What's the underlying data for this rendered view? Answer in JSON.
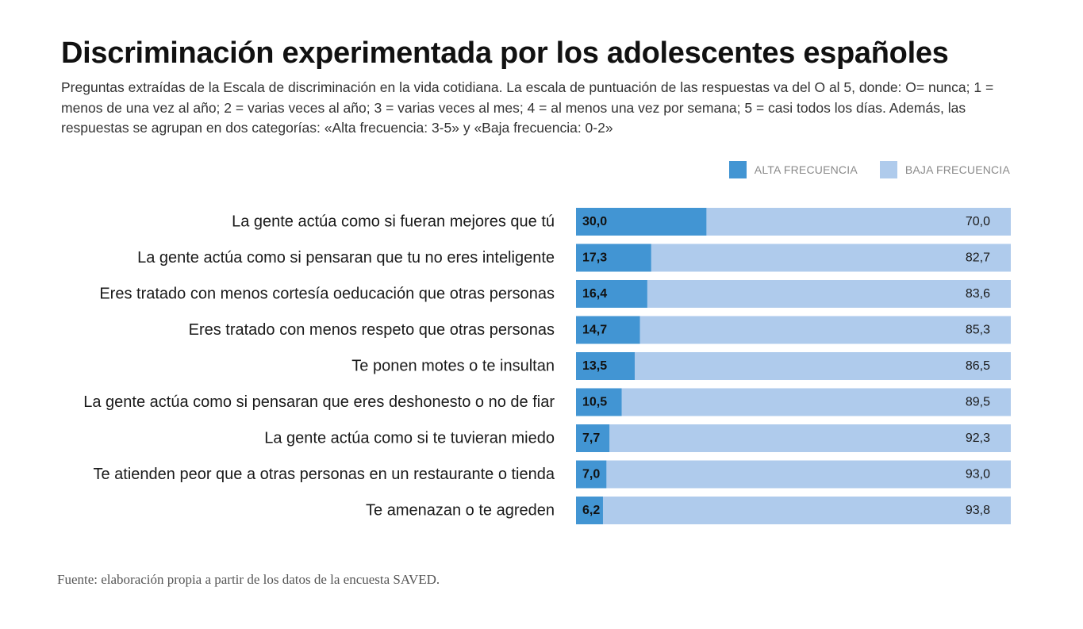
{
  "title": "Discriminación experimentada por los adolescentes españoles",
  "subtitle": "Preguntas extraídas de la Escala de discriminación en la vida cotidiana. La escala de puntuación de las respuestas va del O al 5, donde: O= nunca; 1 = menos de una vez al año; 2 = varias veces al año; 3 = varias veces al mes; 4 = al menos una vez por semana; 5 = casi todos los días. Además, las respuestas se agrupan en dos categorías: «Alta frecuencia: 3-5» y «Baja frecuencia: 0-2»",
  "source": "Fuente: elaboración propia a partir de los datos de la encuesta SAVED.",
  "colors": {
    "alta": "#4295d3",
    "baja": "#afcbec"
  },
  "chart_data": {
    "type": "bar",
    "orientation": "horizontal",
    "stacked": true,
    "xlim": [
      0,
      100
    ],
    "legend_position": "top-right",
    "categories": [
      "La gente actúa como si fueran mejores que tú",
      "La gente actúa como si pensaran que tu no eres inteligente",
      "Eres tratado con menos cortesía oeducación que otras personas",
      "Eres tratado con menos respeto que otras personas",
      "Te ponen motes o te insultan",
      "La gente actúa como si pensaran que eres deshonesto o no de fiar",
      "La gente actúa como si te tuvieran miedo",
      "Te atienden peor que a otras personas en un restaurante o tienda",
      "Te amenazan o te agreden"
    ],
    "series": [
      {
        "name": "ALTA FRECUENCIA",
        "values": [
          30.0,
          17.3,
          16.4,
          14.7,
          13.5,
          10.5,
          7.7,
          7.0,
          6.2
        ],
        "labels": [
          "30,0",
          "17,3",
          "16,4",
          "14,7",
          "13,5",
          "10,5",
          "7,7",
          "7,0",
          "6,2"
        ]
      },
      {
        "name": "BAJA FRECUENCIA",
        "values": [
          70.0,
          82.7,
          83.6,
          85.3,
          86.5,
          89.5,
          92.3,
          93.0,
          93.8
        ],
        "labels": [
          "70,0",
          "82,7",
          "83,6",
          "85,3",
          "86,5",
          "89,5",
          "92,3",
          "93,0",
          "93,8"
        ]
      }
    ]
  }
}
